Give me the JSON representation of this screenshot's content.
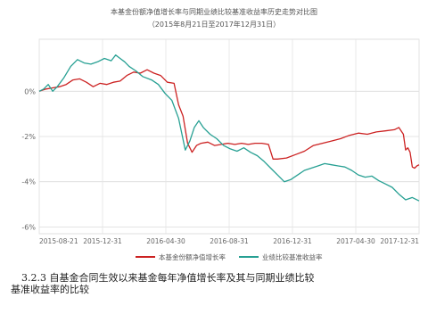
{
  "chart_data": {
    "type": "line",
    "title": "本基金份额净值增长率与同期业绩比较基准收益率历史走势对比图",
    "subtitle": "（2015年8月21日至2017年12月31日）",
    "x_ticks": [
      "2015-08-21",
      "2015-12-31",
      "2016-04-30",
      "2016-08-31",
      "2016-12-31",
      "2017-04-30",
      "2017-12-31"
    ],
    "y_ticks": [
      "0%",
      "-2%",
      "-4%",
      "-6%"
    ],
    "ylim": [
      -6.3,
      2.3
    ],
    "grid": true,
    "legend": "bottom",
    "series": [
      {
        "name": "本基金份额净值增长率",
        "color": "#cc2222",
        "values": [
          [
            0,
            0.0
          ],
          [
            3,
            0.1
          ],
          [
            6,
            0.15
          ],
          [
            9,
            0.2
          ],
          [
            12,
            0.3
          ],
          [
            15,
            0.5
          ],
          [
            18,
            0.55
          ],
          [
            21,
            0.4
          ],
          [
            24,
            0.2
          ],
          [
            27,
            0.35
          ],
          [
            30,
            0.3
          ],
          [
            33,
            0.4
          ],
          [
            36,
            0.45
          ],
          [
            39,
            0.7
          ],
          [
            42,
            0.85
          ],
          [
            45,
            0.8
          ],
          [
            48,
            0.95
          ],
          [
            51,
            0.8
          ],
          [
            54,
            0.7
          ],
          [
            57,
            0.4
          ],
          [
            60,
            0.35
          ],
          [
            62,
            -0.6
          ],
          [
            64,
            -1.1
          ],
          [
            66,
            -2.3
          ],
          [
            68,
            -2.7
          ],
          [
            70,
            -2.4
          ],
          [
            72,
            -2.3
          ],
          [
            75,
            -2.25
          ],
          [
            78,
            -2.4
          ],
          [
            81,
            -2.35
          ],
          [
            84,
            -2.3
          ],
          [
            87,
            -2.35
          ],
          [
            90,
            -2.3
          ],
          [
            93,
            -2.35
          ],
          [
            96,
            -2.3
          ],
          [
            99,
            -2.3
          ],
          [
            102,
            -2.35
          ],
          [
            104,
            -3.0
          ],
          [
            106,
            -3.0
          ],
          [
            110,
            -2.95
          ],
          [
            114,
            -2.8
          ],
          [
            118,
            -2.65
          ],
          [
            122,
            -2.4
          ],
          [
            126,
            -2.3
          ],
          [
            130,
            -2.2
          ],
          [
            134,
            -2.1
          ],
          [
            138,
            -1.95
          ],
          [
            142,
            -1.85
          ],
          [
            146,
            -1.9
          ],
          [
            150,
            -1.8
          ],
          [
            154,
            -1.75
          ],
          [
            158,
            -1.7
          ],
          [
            160,
            -1.6
          ],
          [
            162,
            -1.9
          ],
          [
            163,
            -2.6
          ],
          [
            164,
            -2.5
          ],
          [
            165,
            -2.7
          ],
          [
            166,
            -3.35
          ],
          [
            167,
            -3.4
          ],
          [
            168,
            -3.3
          ],
          [
            169,
            -3.25
          ]
        ]
      },
      {
        "name": "业绩比较基准收益率",
        "color": "#27a093",
        "values": [
          [
            0,
            0.0
          ],
          [
            2,
            0.1
          ],
          [
            4,
            0.3
          ],
          [
            6,
            0.0
          ],
          [
            8,
            0.2
          ],
          [
            11,
            0.6
          ],
          [
            14,
            1.1
          ],
          [
            17,
            1.4
          ],
          [
            20,
            1.25
          ],
          [
            23,
            1.2
          ],
          [
            26,
            1.3
          ],
          [
            29,
            1.45
          ],
          [
            32,
            1.35
          ],
          [
            34,
            1.6
          ],
          [
            36,
            1.45
          ],
          [
            38,
            1.3
          ],
          [
            40,
            1.1
          ],
          [
            43,
            0.9
          ],
          [
            46,
            0.65
          ],
          [
            50,
            0.5
          ],
          [
            53,
            0.3
          ],
          [
            56,
            -0.1
          ],
          [
            59,
            -0.4
          ],
          [
            62,
            -1.2
          ],
          [
            65,
            -2.6
          ],
          [
            67,
            -2.2
          ],
          [
            69,
            -1.6
          ],
          [
            71,
            -1.3
          ],
          [
            73,
            -1.6
          ],
          [
            76,
            -1.9
          ],
          [
            79,
            -2.1
          ],
          [
            82,
            -2.4
          ],
          [
            85,
            -2.55
          ],
          [
            88,
            -2.65
          ],
          [
            91,
            -2.5
          ],
          [
            94,
            -2.7
          ],
          [
            97,
            -2.85
          ],
          [
            100,
            -3.1
          ],
          [
            103,
            -3.4
          ],
          [
            106,
            -3.7
          ],
          [
            109,
            -4.0
          ],
          [
            112,
            -3.9
          ],
          [
            115,
            -3.7
          ],
          [
            118,
            -3.5
          ],
          [
            121,
            -3.4
          ],
          [
            124,
            -3.3
          ],
          [
            127,
            -3.2
          ],
          [
            130,
            -3.25
          ],
          [
            133,
            -3.3
          ],
          [
            136,
            -3.35
          ],
          [
            139,
            -3.5
          ],
          [
            142,
            -3.7
          ],
          [
            145,
            -3.8
          ],
          [
            148,
            -3.75
          ],
          [
            151,
            -3.95
          ],
          [
            154,
            -4.1
          ],
          [
            157,
            -4.25
          ],
          [
            160,
            -4.55
          ],
          [
            163,
            -4.8
          ],
          [
            166,
            -4.7
          ],
          [
            169,
            -4.85
          ]
        ]
      }
    ]
  },
  "caption": {
    "line1": "3.2.3 自基金合同生效以来基金每年净值增长率及其与同期业绩比较",
    "line2": "基准收益率的比较"
  }
}
